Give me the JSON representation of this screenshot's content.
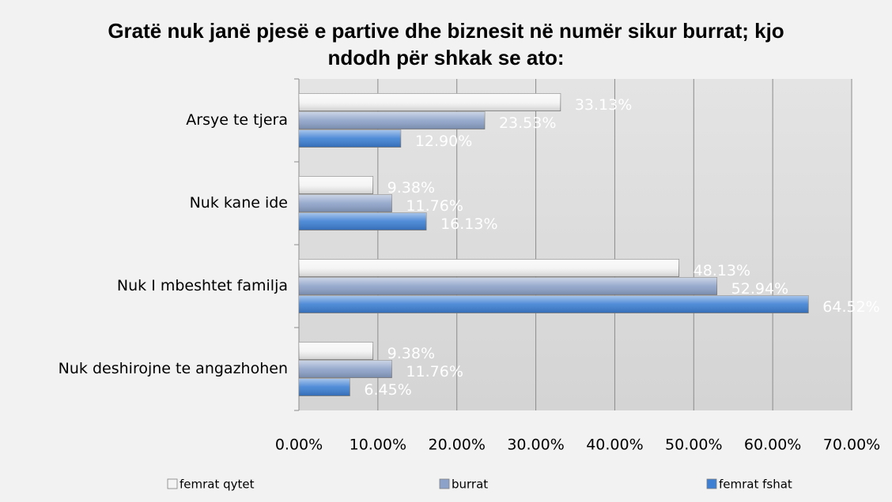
{
  "chart_data": {
    "type": "hbar",
    "title": "Gratë nuk janë pjesë e partive dhe biznesit në numër sikur burrat; kjo ndodh për shkak se ato:",
    "categories": [
      "Arsye te tjera",
      "Nuk kane ide",
      "Nuk I mbeshtet familja",
      "Nuk deshirojne te angazhohen"
    ],
    "series": [
      {
        "name": "femrat qytet",
        "color": "#f4f4f4",
        "values": [
          33.13,
          9.38,
          48.13,
          9.38
        ],
        "value_labels": [
          "33.13%",
          "9.38%",
          "48.13%",
          "9.38%"
        ]
      },
      {
        "name": "burrat",
        "color": "#8da2c9",
        "values": [
          23.53,
          11.76,
          52.94,
          11.76
        ],
        "value_labels": [
          "23.53%",
          "11.76%",
          "52.94%",
          "11.76%"
        ]
      },
      {
        "name": "femrat fshat",
        "color": "#3d7fd3",
        "values": [
          12.9,
          16.13,
          64.52,
          6.45
        ],
        "value_labels": [
          "12.90%",
          "16.13%",
          "64.52%",
          "6.45%"
        ]
      }
    ],
    "xlim": [
      0,
      70
    ],
    "xticks": [
      {
        "value": 0,
        "label": "0.00%"
      },
      {
        "value": 10,
        "label": "10.00%"
      },
      {
        "value": 20,
        "label": "20.00%"
      },
      {
        "value": 30,
        "label": "30.00%"
      },
      {
        "value": 40,
        "label": "40.00%"
      },
      {
        "value": 50,
        "label": "50.00%"
      },
      {
        "value": 60,
        "label": "60.00%"
      },
      {
        "value": 70,
        "label": "70.00%"
      }
    ],
    "grid": true,
    "legend": "bottom"
  }
}
